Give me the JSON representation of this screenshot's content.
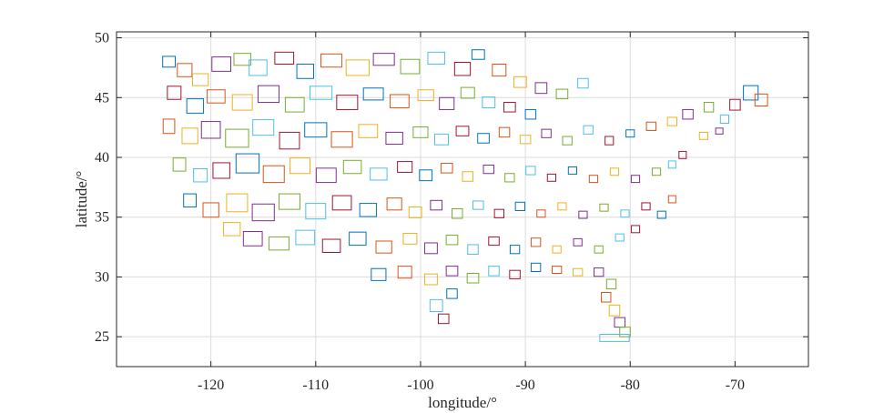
{
  "chart_data": {
    "type": "scatter",
    "title": "",
    "xlabel": "longitude/°",
    "ylabel": "latitude/°",
    "xlim": [
      -129,
      -63
    ],
    "ylim": [
      22.5,
      50.5
    ],
    "xticks": [
      -120,
      -110,
      -100,
      -90,
      -80,
      -70
    ],
    "yticks": [
      25,
      30,
      35,
      40,
      45,
      50
    ],
    "xtick_labels": [
      "-120",
      "-110",
      "-100",
      "-90",
      "-80",
      "-70"
    ],
    "ytick_labels": [
      "25",
      "30",
      "35",
      "40",
      "45",
      "50"
    ],
    "grid": true,
    "legend": "none",
    "colors": [
      "#0072bd",
      "#d95319",
      "#edb120",
      "#7e2f8e",
      "#77ac30",
      "#4dbeee",
      "#a2142f"
    ],
    "series": [
      {
        "marker": "rectangle-outline",
        "values": [
          [
            -124,
            48,
            1.2,
            0.9
          ],
          [
            -122.5,
            47.3,
            1.4,
            1.1
          ],
          [
            -121,
            46.5,
            1.5,
            1.0
          ],
          [
            -119,
            47.8,
            1.8,
            1.2
          ],
          [
            -117,
            48.2,
            1.6,
            1.0
          ],
          [
            -115.5,
            47.5,
            1.7,
            1.3
          ],
          [
            -113,
            48.3,
            1.8,
            1.0
          ],
          [
            -111,
            47.2,
            1.6,
            1.2
          ],
          [
            -108.5,
            48.1,
            2.0,
            1.1
          ],
          [
            -106,
            47.5,
            2.2,
            1.3
          ],
          [
            -103.5,
            48.2,
            2.0,
            1.0
          ],
          [
            -101,
            47.6,
            1.8,
            1.2
          ],
          [
            -98.5,
            48.3,
            1.6,
            1.0
          ],
          [
            -96,
            47.4,
            1.5,
            1.1
          ],
          [
            -94.5,
            48.6,
            1.2,
            0.8
          ],
          [
            -92.5,
            47.3,
            1.3,
            1.0
          ],
          [
            -90.5,
            46.3,
            1.2,
            0.9
          ],
          [
            -88.5,
            45.8,
            1.1,
            0.9
          ],
          [
            -86.5,
            45.3,
            1.1,
            0.8
          ],
          [
            -84.5,
            46.2,
            1.0,
            0.8
          ],
          [
            -123.5,
            45.4,
            1.3,
            1.1
          ],
          [
            -121.5,
            44.3,
            1.6,
            1.2
          ],
          [
            -119.5,
            45.1,
            1.7,
            1.1
          ],
          [
            -117,
            44.6,
            1.9,
            1.3
          ],
          [
            -114.5,
            45.3,
            2.0,
            1.4
          ],
          [
            -112,
            44.4,
            1.8,
            1.2
          ],
          [
            -109.5,
            45.4,
            2.1,
            1.1
          ],
          [
            -107,
            44.6,
            2.0,
            1.2
          ],
          [
            -104.5,
            45.3,
            1.9,
            1.0
          ],
          [
            -102,
            44.7,
            1.8,
            1.1
          ],
          [
            -99.5,
            45.2,
            1.5,
            0.9
          ],
          [
            -97.5,
            44.5,
            1.4,
            1.0
          ],
          [
            -95.5,
            45.4,
            1.3,
            0.9
          ],
          [
            -93.5,
            44.6,
            1.2,
            0.9
          ],
          [
            -91.5,
            44.2,
            1.1,
            0.8
          ],
          [
            -89.5,
            43.6,
            1.0,
            0.8
          ],
          [
            -124,
            42.6,
            1.1,
            1.2
          ],
          [
            -122,
            41.8,
            1.5,
            1.3
          ],
          [
            -120,
            42.3,
            1.8,
            1.4
          ],
          [
            -117.5,
            41.6,
            2.2,
            1.5
          ],
          [
            -115,
            42.5,
            2.0,
            1.3
          ],
          [
            -112.5,
            41.4,
            1.9,
            1.4
          ],
          [
            -110,
            42.3,
            2.1,
            1.2
          ],
          [
            -107.5,
            41.5,
            2.0,
            1.3
          ],
          [
            -105,
            42.2,
            1.8,
            1.1
          ],
          [
            -102.5,
            41.6,
            1.6,
            1.0
          ],
          [
            -100,
            42.1,
            1.4,
            0.9
          ],
          [
            -98,
            41.5,
            1.3,
            0.9
          ],
          [
            -96,
            42.2,
            1.2,
            0.8
          ],
          [
            -94,
            41.6,
            1.1,
            0.8
          ],
          [
            -92,
            42.1,
            1.0,
            0.8
          ],
          [
            -90,
            41.5,
            1.0,
            0.7
          ],
          [
            -88,
            42.0,
            0.9,
            0.7
          ],
          [
            -86,
            41.4,
            0.9,
            0.7
          ],
          [
            -84,
            42.3,
            0.9,
            0.7
          ],
          [
            -82,
            41.4,
            0.8,
            0.7
          ],
          [
            -80,
            42.0,
            0.8,
            0.6
          ],
          [
            -78,
            42.6,
            0.9,
            0.7
          ],
          [
            -76,
            43.0,
            0.9,
            0.7
          ],
          [
            -74.5,
            43.6,
            1.0,
            0.8
          ],
          [
            -72.5,
            44.2,
            0.9,
            0.8
          ],
          [
            -71,
            43.2,
            0.8,
            0.7
          ],
          [
            -70,
            44.4,
            1.0,
            0.9
          ],
          [
            -68.5,
            45.4,
            1.4,
            1.2
          ],
          [
            -67.5,
            44.8,
            1.2,
            1.0
          ],
          [
            -73,
            41.8,
            0.8,
            0.6
          ],
          [
            -71.5,
            42.2,
            0.7,
            0.5
          ],
          [
            -123,
            39.4,
            1.2,
            1.1
          ],
          [
            -121,
            38.5,
            1.3,
            1.1
          ],
          [
            -119,
            38.9,
            1.6,
            1.3
          ],
          [
            -116.5,
            39.5,
            2.2,
            1.6
          ],
          [
            -114,
            38.6,
            2.0,
            1.4
          ],
          [
            -111.5,
            39.3,
            1.9,
            1.3
          ],
          [
            -109,
            38.5,
            1.9,
            1.2
          ],
          [
            -106.5,
            39.2,
            1.7,
            1.1
          ],
          [
            -104,
            38.6,
            1.6,
            1.0
          ],
          [
            -101.5,
            39.2,
            1.4,
            0.9
          ],
          [
            -99.5,
            38.5,
            1.2,
            0.9
          ],
          [
            -97.5,
            39.1,
            1.1,
            0.8
          ],
          [
            -95.5,
            38.4,
            1.0,
            0.8
          ],
          [
            -93.5,
            39.0,
            1.0,
            0.7
          ],
          [
            -91.5,
            38.3,
            0.9,
            0.7
          ],
          [
            -89.5,
            38.9,
            0.9,
            0.7
          ],
          [
            -87.5,
            38.3,
            0.8,
            0.6
          ],
          [
            -85.5,
            38.9,
            0.8,
            0.6
          ],
          [
            -83.5,
            38.2,
            0.8,
            0.6
          ],
          [
            -81.5,
            38.8,
            0.8,
            0.6
          ],
          [
            -79.5,
            38.2,
            0.8,
            0.6
          ],
          [
            -77.5,
            38.8,
            0.8,
            0.6
          ],
          [
            -76,
            39.4,
            0.7,
            0.6
          ],
          [
            -75,
            40.2,
            0.7,
            0.6
          ],
          [
            -122,
            36.4,
            1.2,
            1.1
          ],
          [
            -120,
            35.6,
            1.5,
            1.2
          ],
          [
            -117.5,
            36.2,
            2.0,
            1.5
          ],
          [
            -115,
            35.4,
            2.1,
            1.4
          ],
          [
            -112.5,
            36.3,
            2.0,
            1.3
          ],
          [
            -110,
            35.5,
            1.9,
            1.3
          ],
          [
            -107.5,
            36.2,
            1.8,
            1.2
          ],
          [
            -105,
            35.6,
            1.6,
            1.1
          ],
          [
            -102.5,
            36.1,
            1.4,
            1.0
          ],
          [
            -100.5,
            35.4,
            1.2,
            0.9
          ],
          [
            -98.5,
            36.0,
            1.1,
            0.8
          ],
          [
            -96.5,
            35.3,
            1.0,
            0.8
          ],
          [
            -94.5,
            36.0,
            1.0,
            0.7
          ],
          [
            -92.5,
            35.3,
            0.9,
            0.7
          ],
          [
            -90.5,
            35.9,
            0.9,
            0.7
          ],
          [
            -88.5,
            35.3,
            0.8,
            0.6
          ],
          [
            -86.5,
            35.9,
            0.8,
            0.6
          ],
          [
            -84.5,
            35.2,
            0.8,
            0.6
          ],
          [
            -82.5,
            35.8,
            0.8,
            0.6
          ],
          [
            -80.5,
            35.3,
            0.8,
            0.6
          ],
          [
            -78.5,
            35.9,
            0.8,
            0.6
          ],
          [
            -77,
            35.2,
            0.8,
            0.6
          ],
          [
            -76,
            36.5,
            0.7,
            0.6
          ],
          [
            -118,
            34.0,
            1.6,
            1.1
          ],
          [
            -116,
            33.2,
            1.8,
            1.2
          ],
          [
            -113.5,
            32.8,
            1.9,
            1.1
          ],
          [
            -111,
            33.3,
            1.8,
            1.2
          ],
          [
            -108.5,
            32.6,
            1.7,
            1.1
          ],
          [
            -106,
            33.2,
            1.6,
            1.1
          ],
          [
            -103.5,
            32.5,
            1.5,
            1.0
          ],
          [
            -101,
            33.2,
            1.3,
            0.9
          ],
          [
            -99,
            32.4,
            1.2,
            0.9
          ],
          [
            -97,
            33.1,
            1.1,
            0.8
          ],
          [
            -95,
            32.3,
            1.0,
            0.8
          ],
          [
            -93,
            33.0,
            1.0,
            0.7
          ],
          [
            -91,
            32.3,
            0.9,
            0.7
          ],
          [
            -89,
            32.9,
            0.9,
            0.7
          ],
          [
            -87,
            32.3,
            0.8,
            0.6
          ],
          [
            -85,
            32.9,
            0.8,
            0.6
          ],
          [
            -83,
            32.3,
            0.8,
            0.6
          ],
          [
            -81,
            33.3,
            0.8,
            0.6
          ],
          [
            -79.5,
            34.0,
            0.8,
            0.6
          ],
          [
            -104,
            30.2,
            1.4,
            1.0
          ],
          [
            -101.5,
            30.4,
            1.3,
            1.0
          ],
          [
            -99,
            29.8,
            1.2,
            0.9
          ],
          [
            -97,
            30.5,
            1.1,
            0.8
          ],
          [
            -95,
            29.9,
            1.1,
            0.8
          ],
          [
            -93,
            30.5,
            1.0,
            0.8
          ],
          [
            -91,
            30.2,
            1.0,
            0.7
          ],
          [
            -89,
            30.8,
            0.9,
            0.7
          ],
          [
            -87,
            30.6,
            0.9,
            0.6
          ],
          [
            -85,
            30.4,
            0.9,
            0.6
          ],
          [
            -83,
            30.4,
            0.9,
            0.7
          ],
          [
            -81.8,
            29.4,
            0.9,
            0.8
          ],
          [
            -98.5,
            27.6,
            1.2,
            1.0
          ],
          [
            -97.8,
            26.5,
            1.0,
            0.8
          ],
          [
            -97.0,
            28.6,
            1.0,
            0.8
          ],
          [
            -82.3,
            28.3,
            0.9,
            0.8
          ],
          [
            -81.5,
            27.2,
            1.0,
            0.9
          ],
          [
            -81.0,
            26.2,
            1.0,
            0.8
          ],
          [
            -80.5,
            25.4,
            1.0,
            0.8
          ],
          [
            -81.5,
            24.9,
            2.8,
            0.6
          ]
        ]
      }
    ]
  }
}
